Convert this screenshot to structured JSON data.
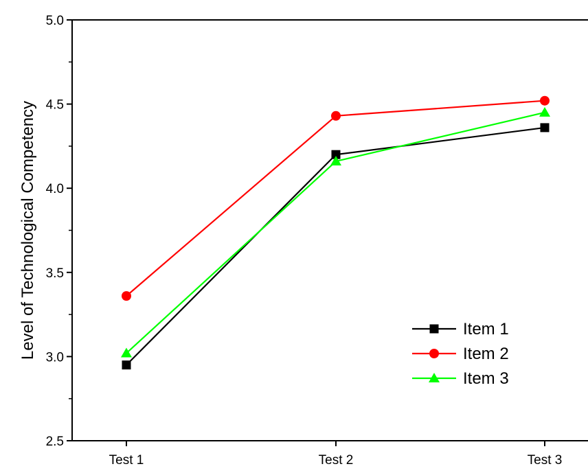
{
  "chart_data": {
    "type": "line",
    "title": "",
    "xlabel": "",
    "ylabel": "Level of Technological Competency",
    "categories": [
      "Test 1",
      "Test 2",
      "Test 3"
    ],
    "ylim": [
      2.5,
      5.0
    ],
    "yticks": [
      "2.5",
      "3.0",
      "3.5",
      "4.0",
      "4.5",
      "5.0"
    ],
    "grid": false,
    "legend_position": "bottom-right",
    "series": [
      {
        "name": "Item 1",
        "values": [
          2.95,
          4.2,
          4.36
        ],
        "color": "#000000",
        "marker": "square"
      },
      {
        "name": "Item 2",
        "values": [
          3.36,
          4.43,
          4.52
        ],
        "color": "#ff0000",
        "marker": "circle"
      },
      {
        "name": "Item 3",
        "values": [
          3.02,
          4.16,
          4.45
        ],
        "color": "#00ff00",
        "marker": "triangle"
      }
    ]
  }
}
